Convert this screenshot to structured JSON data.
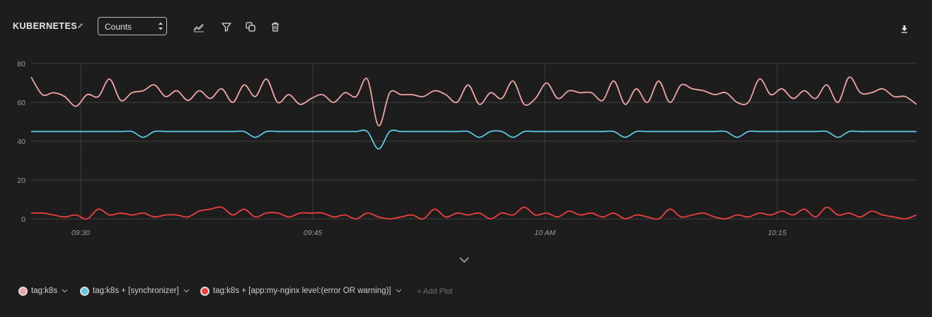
{
  "header": {
    "title": "KUBERNETES",
    "select_value": "Counts",
    "icons": [
      "edit-icon",
      "chart-type-icon",
      "filter-icon",
      "duplicate-icon",
      "delete-icon",
      "download-icon"
    ]
  },
  "legend": {
    "items": [
      {
        "label": "tag:k8s",
        "color": "#f0a3a3"
      },
      {
        "label": "tag:k8s + [synchronizer]",
        "color": "#5cc8e0"
      },
      {
        "label": "tag:k8s + [app:my-nginx level:(error OR warning)]",
        "color": "#ee3e3e"
      }
    ],
    "add_plot": "+ Add Plot"
  },
  "chart_data": {
    "type": "line",
    "ylim": [
      0,
      80
    ],
    "yticks": [
      "0",
      "20",
      "40",
      "60",
      "80"
    ],
    "xticks": [
      "09:30",
      "09:45",
      "10 AM",
      "10:15"
    ],
    "x_start_minute": -3.2,
    "x_end_minute": 54,
    "xtick_minutes": [
      0,
      15,
      30,
      45
    ],
    "grid": true,
    "series": [
      {
        "name": "tag:k8s",
        "color": "#f0a3a3",
        "values": [
          73,
          64,
          65,
          63,
          58,
          64,
          63,
          72,
          61,
          65,
          66,
          69,
          63,
          66,
          61,
          66,
          62,
          67,
          60,
          69,
          63,
          72,
          60,
          64,
          59,
          62,
          64,
          60,
          65,
          63,
          72,
          48,
          65,
          64,
          64,
          63,
          66,
          64,
          60,
          69,
          59,
          65,
          62,
          71,
          59,
          62,
          70,
          62,
          66,
          65,
          65,
          61,
          71,
          59,
          67,
          60,
          71,
          60,
          69,
          67,
          66,
          64,
          65,
          60,
          60,
          72,
          64,
          67,
          62,
          66,
          62,
          69,
          60,
          73,
          65,
          65,
          67,
          63,
          63,
          59
        ]
      },
      {
        "name": "tag:k8s + [synchronizer]",
        "color": "#5cc8e0",
        "values": [
          45,
          45,
          45,
          45,
          45,
          45,
          45,
          45,
          45,
          45,
          42,
          45,
          45,
          45,
          45,
          45,
          45,
          45,
          45,
          45,
          42,
          45,
          45,
          45,
          45,
          45,
          45,
          45,
          45,
          45,
          45,
          36,
          45,
          45,
          45,
          45,
          45,
          45,
          45,
          45,
          42,
          45,
          45,
          42,
          45,
          45,
          45,
          45,
          45,
          45,
          45,
          45,
          45,
          42,
          45,
          45,
          45,
          45,
          45,
          45,
          45,
          45,
          45,
          42,
          45,
          45,
          45,
          45,
          45,
          45,
          45,
          45,
          42,
          45,
          45,
          45,
          45,
          45,
          45,
          45
        ]
      },
      {
        "name": "tag:k8s + [app:my-nginx level:(error OR warning)]",
        "color": "#ee3e3e",
        "values": [
          3,
          3,
          2,
          1,
          2,
          0,
          5,
          2,
          3,
          2,
          3,
          1,
          2,
          2,
          1,
          4,
          5,
          6,
          2,
          5,
          1,
          3,
          3,
          1,
          3,
          3,
          3,
          1,
          2,
          0,
          3,
          1,
          0,
          1,
          2,
          0,
          5,
          1,
          3,
          2,
          3,
          0,
          3,
          2,
          6,
          2,
          3,
          1,
          4,
          2,
          3,
          1,
          3,
          0,
          2,
          1,
          0,
          5,
          1,
          2,
          3,
          1,
          0,
          2,
          1,
          3,
          2,
          4,
          2,
          5,
          1,
          6,
          2,
          3,
          1,
          4,
          2,
          1,
          0,
          2
        ]
      }
    ]
  }
}
